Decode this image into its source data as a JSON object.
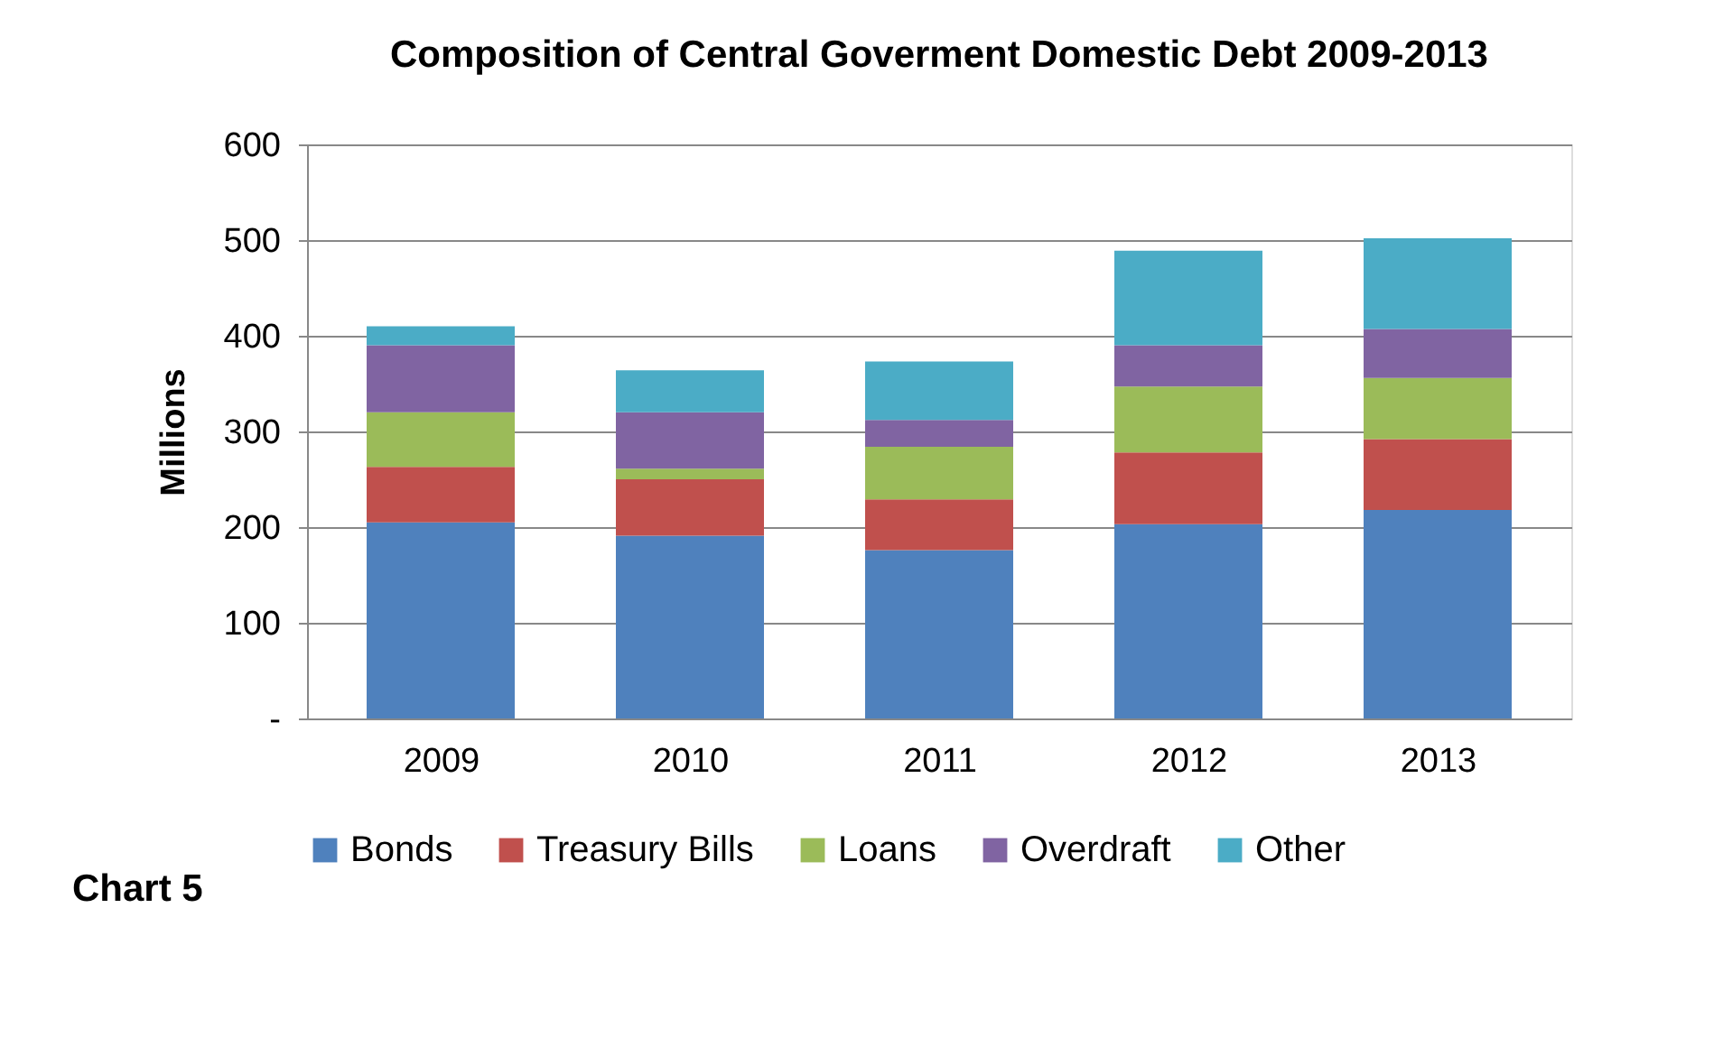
{
  "chart_data": {
    "type": "bar",
    "stacked": true,
    "title": "Composition of Central Goverment Domestic Debt 2009-2013",
    "ylabel": "Millions",
    "categories": [
      "2009",
      "2010",
      "2011",
      "2012",
      "2013"
    ],
    "series": [
      {
        "name": "Bonds",
        "color": "#4f81bd",
        "values": [
          205,
          191,
          176,
          203,
          218
        ]
      },
      {
        "name": "Treasury Bills",
        "color": "#c0504d",
        "values": [
          58,
          59,
          53,
          75,
          74
        ]
      },
      {
        "name": "Loans",
        "color": "#9bbb59",
        "values": [
          57,
          11,
          55,
          69,
          64
        ]
      },
      {
        "name": "Overdraft",
        "color": "#8064a2",
        "values": [
          70,
          59,
          28,
          43,
          51
        ]
      },
      {
        "name": "Other",
        "color": "#4bacc6",
        "values": [
          20,
          44,
          61,
          99,
          95
        ]
      }
    ],
    "ylim": [
      0,
      600
    ],
    "yticks": [
      {
        "value": 0,
        "label": "-"
      },
      100,
      200,
      300,
      400,
      500,
      600
    ],
    "grid": "y",
    "legend": "bottom",
    "annotations": [
      "Chart 5"
    ]
  }
}
